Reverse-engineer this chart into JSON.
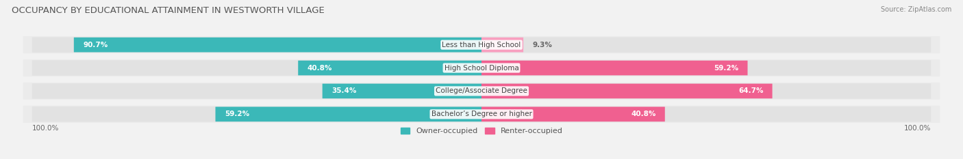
{
  "title": "OCCUPANCY BY EDUCATIONAL ATTAINMENT IN WESTWORTH VILLAGE",
  "source": "Source: ZipAtlas.com",
  "categories": [
    "Less than High School",
    "High School Diploma",
    "College/Associate Degree",
    "Bachelor’s Degree or higher"
  ],
  "owner_values": [
    90.7,
    40.8,
    35.4,
    59.2
  ],
  "renter_values": [
    9.3,
    59.2,
    64.7,
    40.8
  ],
  "owner_color": "#3BB8B8",
  "renter_color": "#F06090",
  "renter_light_color": "#F8A0C0",
  "bg_color": "#F2F2F2",
  "bar_bg_color": "#E2E2E2",
  "row_bg_color": "#EBEBEB",
  "title_fontsize": 9.5,
  "source_fontsize": 7,
  "label_fontsize": 7.5,
  "cat_fontsize": 7.5,
  "axis_label_fontsize": 7.5,
  "legend_fontsize": 8,
  "bar_height": 0.62,
  "total_width": 100
}
